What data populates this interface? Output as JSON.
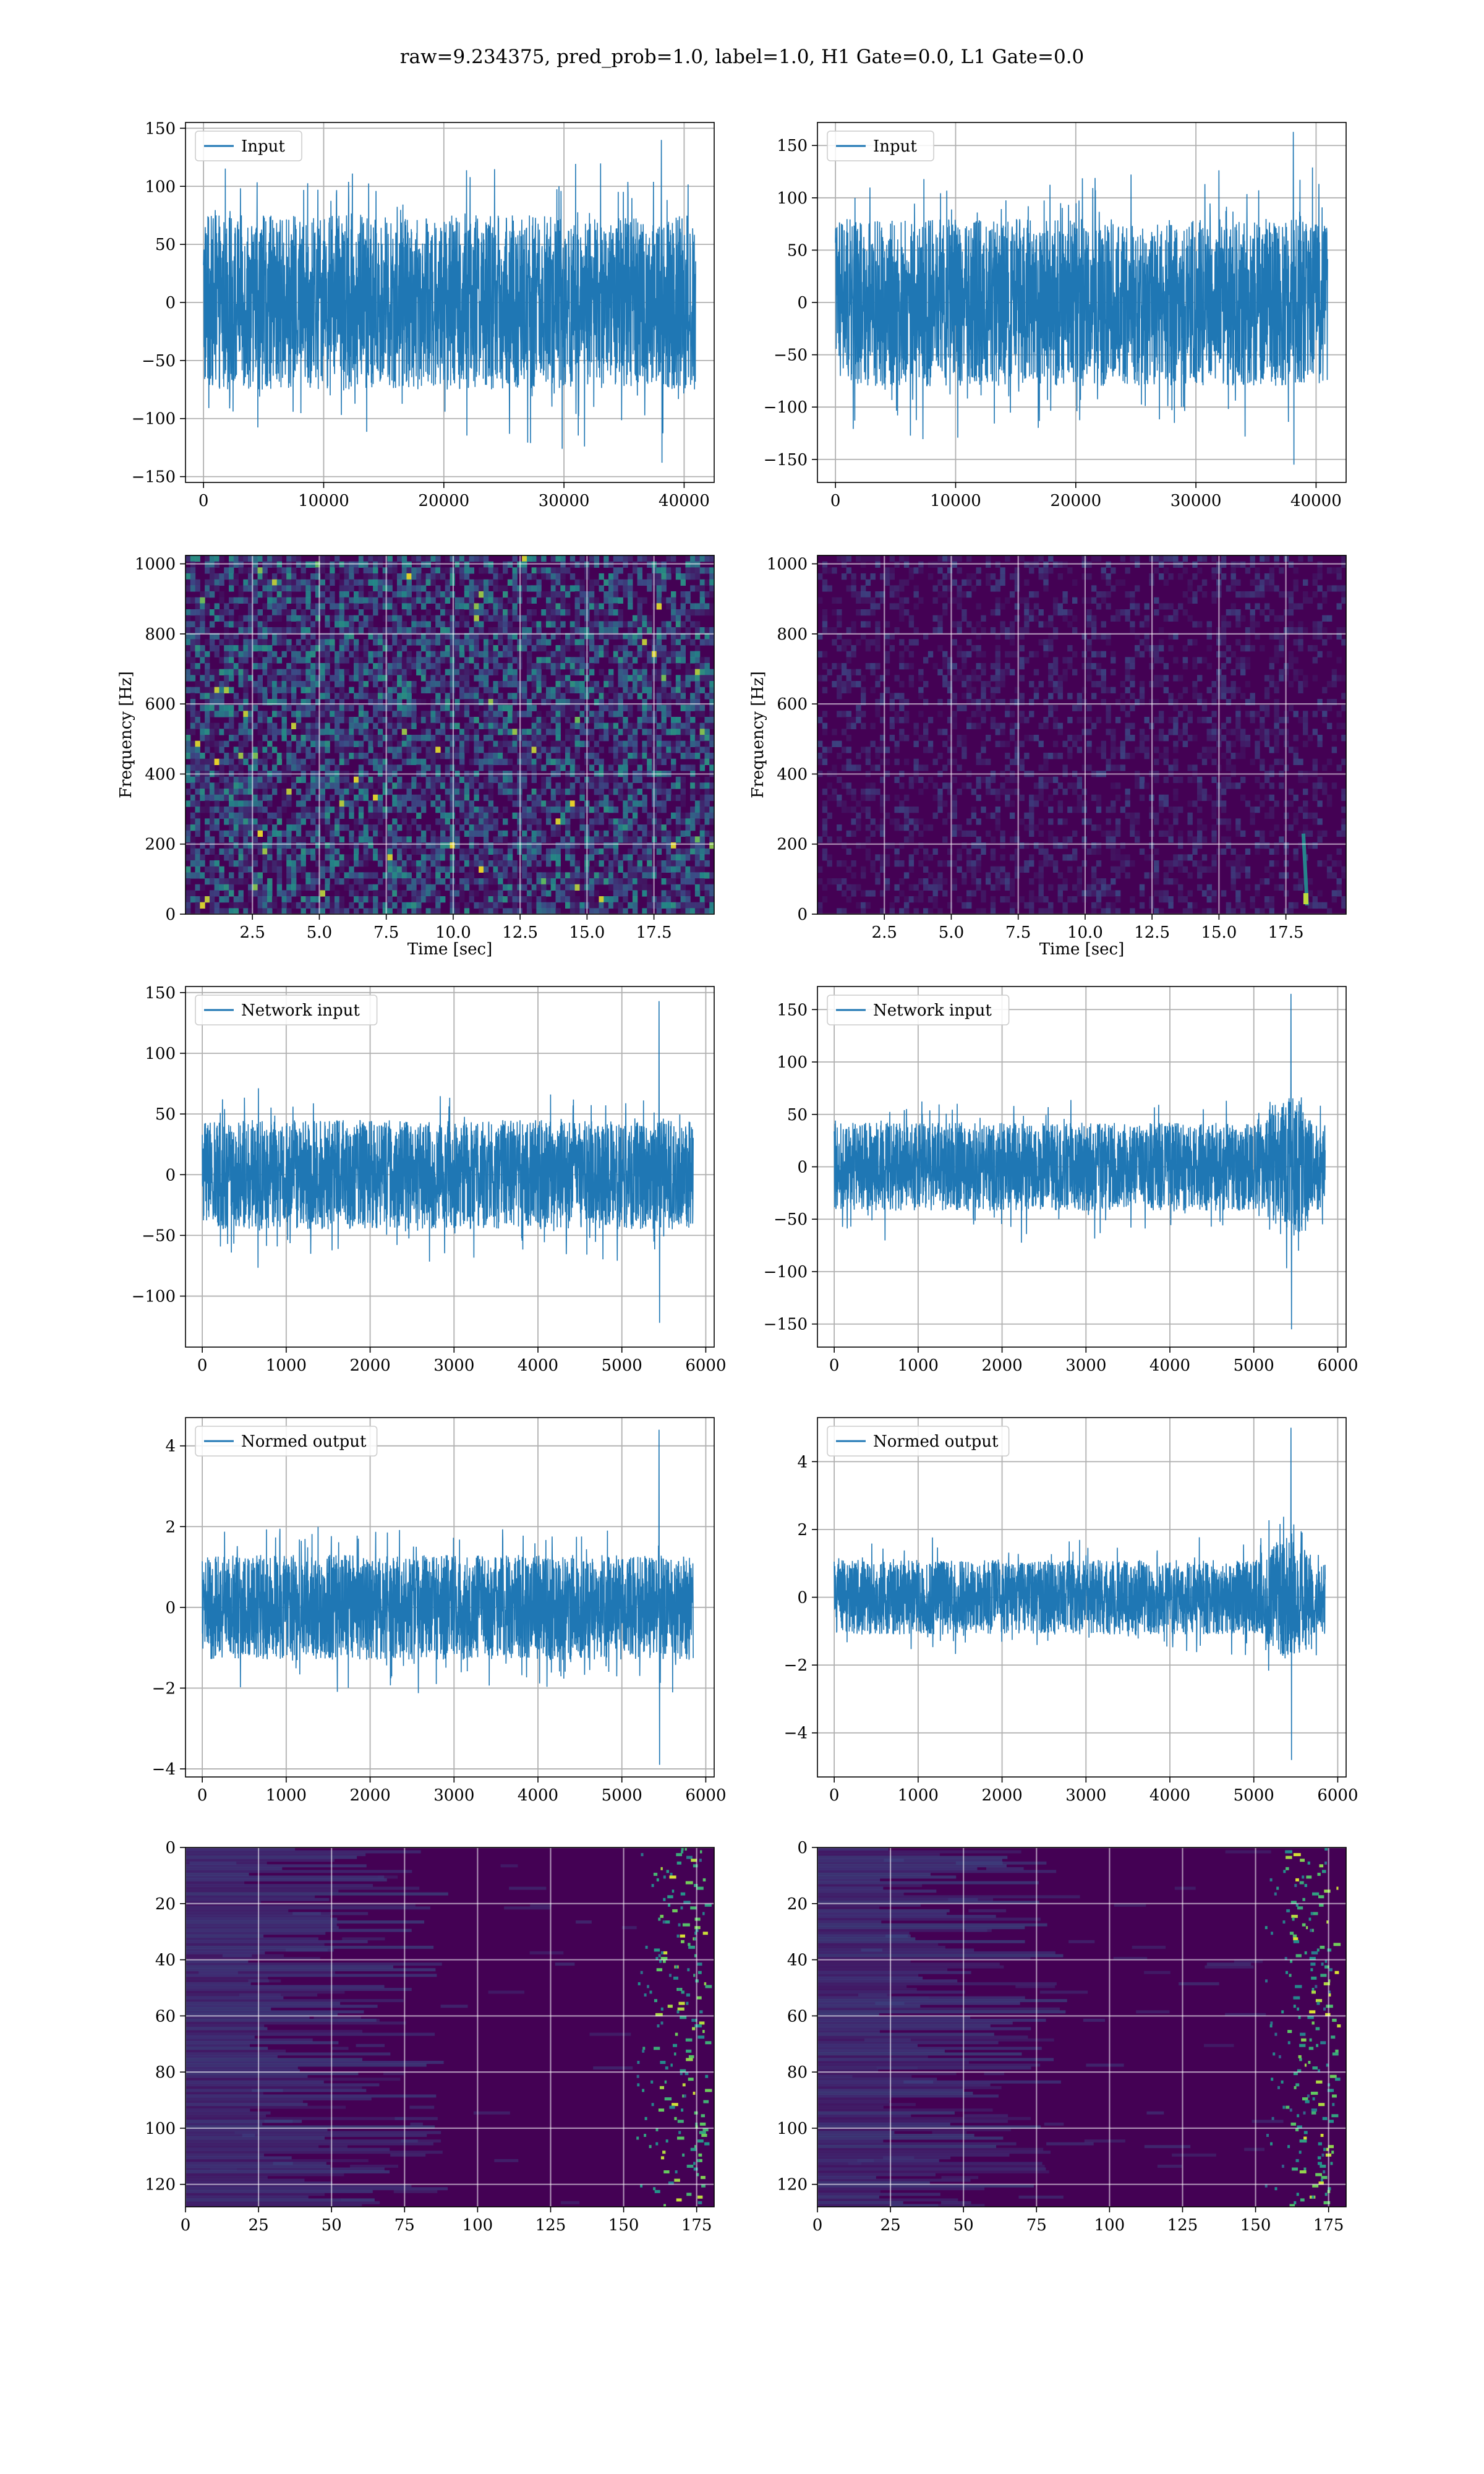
{
  "figure": {
    "suptitle": "raw=9.234375, pred_prob=1.0, label=1.0, H1 Gate=0.0, L1 Gate=0.0"
  },
  "colors": {
    "series": "#1f77b4",
    "grid": "#b0b0b0",
    "viridis_low": "#440154",
    "viridis_mid": "#21918c",
    "viridis_high": "#fde725"
  },
  "chart_data": [
    {
      "id": "h1-input",
      "type": "line",
      "series": [
        {
          "name": "Input",
          "amplitude": 75,
          "peak_max": 140,
          "peak_min": -138,
          "n": 40960
        }
      ],
      "xlim": [
        -1500,
        42500
      ],
      "ylim": [
        -155,
        155
      ],
      "xticks": [
        0,
        10000,
        20000,
        30000,
        40000
      ],
      "yticks": [
        -150,
        -100,
        -50,
        0,
        50,
        100,
        150
      ],
      "legend": "upper left",
      "grid": true
    },
    {
      "id": "l1-input",
      "type": "line",
      "series": [
        {
          "name": "Input",
          "amplitude": 80,
          "peak_max": 163,
          "peak_min": -155,
          "n": 40960
        }
      ],
      "xlim": [
        -1500,
        42500
      ],
      "ylim": [
        -172,
        172
      ],
      "xticks": [
        0,
        10000,
        20000,
        30000,
        40000
      ],
      "yticks": [
        -150,
        -100,
        -50,
        0,
        50,
        100,
        150
      ],
      "legend": "upper left",
      "grid": true
    },
    {
      "id": "h1-spectrogram",
      "type": "heatmap",
      "xlabel": "Time [sec]",
      "ylabel": "Frequency [Hz]",
      "xlim": [
        0,
        19.75
      ],
      "ylim": [
        0,
        1024
      ],
      "xticks": [
        2.5,
        5.0,
        7.5,
        10.0,
        12.5,
        15.0,
        17.5
      ],
      "yticks": [
        0,
        200,
        400,
        600,
        800,
        1000
      ],
      "colormap": "viridis",
      "grid": true
    },
    {
      "id": "l1-spectrogram",
      "type": "heatmap",
      "xlabel": "Time [sec]",
      "ylabel": "Frequency [Hz]",
      "xlim": [
        0,
        19.75
      ],
      "ylim": [
        0,
        1024
      ],
      "xticks": [
        2.5,
        5.0,
        7.5,
        10.0,
        12.5,
        15.0,
        17.5
      ],
      "yticks": [
        0,
        200,
        400,
        600,
        800,
        1000
      ],
      "colormap": "viridis",
      "chirp_time": 18.2,
      "grid": true
    },
    {
      "id": "h1-network-input",
      "type": "line",
      "series": [
        {
          "name": "Network input",
          "amplitude": 45,
          "peak_max": 143,
          "peak_min": -122,
          "n": 5850
        }
      ],
      "xlim": [
        -200,
        6100
      ],
      "ylim": [
        -142,
        155
      ],
      "xticks": [
        0,
        1000,
        2000,
        3000,
        4000,
        5000,
        6000
      ],
      "yticks": [
        -100,
        -50,
        0,
        50,
        100,
        150
      ],
      "legend": "upper left",
      "grid": true
    },
    {
      "id": "l1-network-input",
      "type": "line",
      "series": [
        {
          "name": "Network input",
          "amplitude": 42,
          "peak_max": 165,
          "peak_min": -155,
          "n": 5850
        }
      ],
      "xlim": [
        -200,
        6100
      ],
      "ylim": [
        -172,
        172
      ],
      "xticks": [
        0,
        1000,
        2000,
        3000,
        4000,
        5000,
        6000
      ],
      "yticks": [
        -150,
        -100,
        -50,
        0,
        50,
        100,
        150
      ],
      "legend": "upper left",
      "grid": true
    },
    {
      "id": "h1-normed-output",
      "type": "line",
      "series": [
        {
          "name": "Normed output",
          "amplitude": 1.3,
          "peak_max": 4.4,
          "peak_min": -3.9,
          "n": 5850
        }
      ],
      "xlim": [
        -200,
        6100
      ],
      "ylim": [
        -4.2,
        4.7
      ],
      "xticks": [
        0,
        1000,
        2000,
        3000,
        4000,
        5000,
        6000
      ],
      "yticks": [
        -4,
        -2,
        0,
        2,
        4
      ],
      "legend": "upper left",
      "grid": true
    },
    {
      "id": "l1-normed-output",
      "type": "line",
      "series": [
        {
          "name": "Normed output",
          "amplitude": 1.1,
          "peak_max": 5.0,
          "peak_min": -4.8,
          "n": 5850
        }
      ],
      "xlim": [
        -200,
        6100
      ],
      "ylim": [
        -5.3,
        5.3
      ],
      "xticks": [
        0,
        1000,
        2000,
        3000,
        4000,
        5000,
        6000
      ],
      "yticks": [
        -4,
        -2,
        0,
        2,
        4
      ],
      "legend": "upper left",
      "grid": true
    },
    {
      "id": "h1-feature-map",
      "type": "heatmap",
      "xlim": [
        0,
        181
      ],
      "ylim": [
        128,
        0
      ],
      "xticks": [
        0,
        25,
        50,
        75,
        100,
        125,
        150,
        175
      ],
      "yticks": [
        0,
        20,
        40,
        60,
        80,
        100,
        120
      ],
      "colormap": "viridis",
      "grid": true
    },
    {
      "id": "l1-feature-map",
      "type": "heatmap",
      "xlim": [
        0,
        181
      ],
      "ylim": [
        128,
        0
      ],
      "xticks": [
        0,
        25,
        50,
        75,
        100,
        125,
        150,
        175
      ],
      "yticks": [
        0,
        20,
        40,
        60,
        80,
        100,
        120
      ],
      "colormap": "viridis",
      "grid": true
    }
  ]
}
